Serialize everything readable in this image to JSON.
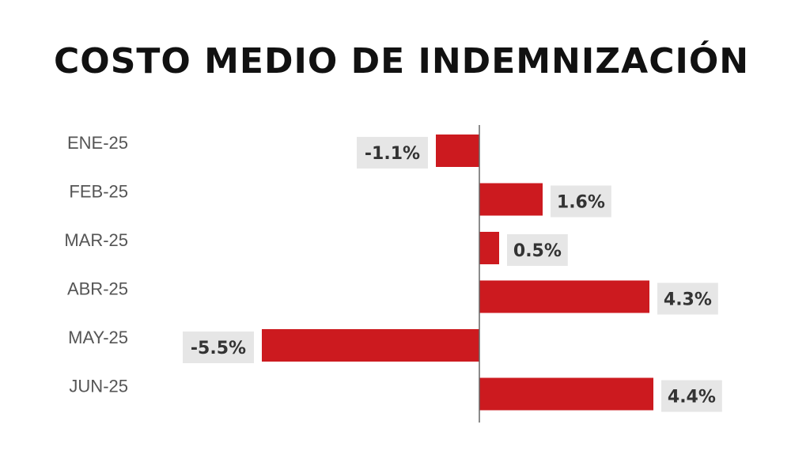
{
  "chart_data": {
    "type": "bar",
    "orientation": "horizontal",
    "title": "COSTO MEDIO DE INDEMNIZACIÓN",
    "categories": [
      "ENE-25",
      "FEB-25",
      "MAR-25",
      "ABR-25",
      "MAY-25",
      "JUN-25"
    ],
    "values": [
      -1.1,
      1.6,
      0.5,
      4.3,
      -5.5,
      4.4
    ],
    "value_labels": [
      "-1.1%",
      "1.6%",
      "0.5%",
      "4.3%",
      "-5.5%",
      "4.4%"
    ],
    "bar_color": "#cc1a1f",
    "label_bg_color": "#e6e6e6",
    "grid": false,
    "legend": "none"
  }
}
